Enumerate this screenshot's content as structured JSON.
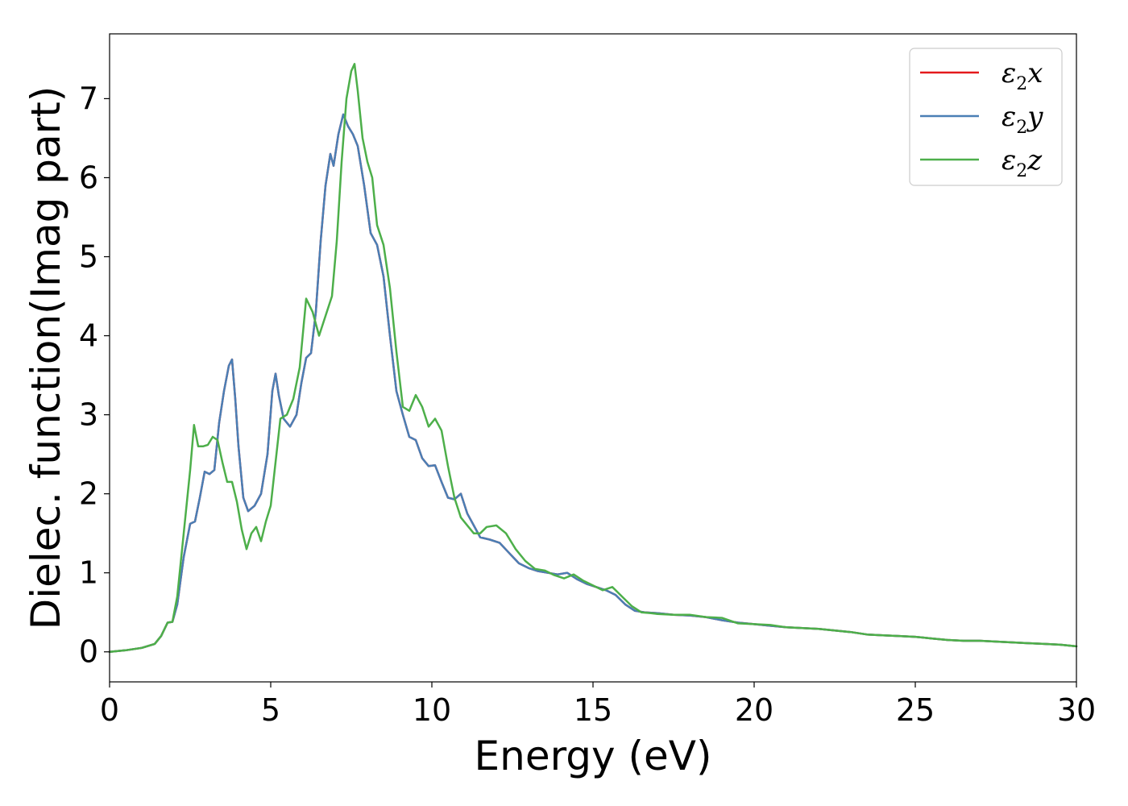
{
  "chart_data": {
    "type": "line",
    "title": "",
    "xlabel": "Energy (eV)",
    "ylabel": "Dielec. function(Imag part)",
    "xlim": [
      0,
      30
    ],
    "ylim": [
      -0.38,
      7.82
    ],
    "xticks": [
      0,
      5,
      10,
      15,
      20,
      25,
      30
    ],
    "yticks": [
      0,
      1,
      2,
      3,
      4,
      5,
      6,
      7
    ],
    "grid": false,
    "legend_position": "top-right",
    "series": [
      {
        "name": "ε₂x",
        "legend_main": "ε",
        "legend_sub": "2",
        "legend_suffix": "x",
        "color": "#e41a1c",
        "x": [
          0,
          0.5,
          1.0,
          1.4,
          1.6,
          1.8,
          1.95,
          2.1,
          2.3,
          2.5,
          2.65,
          2.8,
          2.95,
          3.1,
          3.25,
          3.4,
          3.55,
          3.7,
          3.8,
          3.9,
          4.0,
          4.15,
          4.3,
          4.5,
          4.7,
          4.9,
          5.05,
          5.15,
          5.25,
          5.4,
          5.6,
          5.8,
          5.95,
          6.1,
          6.25,
          6.4,
          6.55,
          6.7,
          6.85,
          6.95,
          7.1,
          7.25,
          7.4,
          7.55,
          7.7,
          7.9,
          8.1,
          8.3,
          8.5,
          8.7,
          8.9,
          9.1,
          9.3,
          9.5,
          9.7,
          9.9,
          10.1,
          10.3,
          10.5,
          10.7,
          10.9,
          11.1,
          11.3,
          11.5,
          11.8,
          12.1,
          12.4,
          12.7,
          13.0,
          13.3,
          13.6,
          13.9,
          14.2,
          14.5,
          14.8,
          15.1,
          15.4,
          15.7,
          16.0,
          16.3,
          16.6,
          17.0,
          17.5,
          18.0,
          18.5,
          19.0,
          19.5,
          20.0,
          20.5,
          21.0,
          21.5,
          22.0,
          22.5,
          23.0,
          23.5,
          24.0,
          24.5,
          25.0,
          25.5,
          26.0,
          26.5,
          27.0,
          27.5,
          28.0,
          28.5,
          29.0,
          29.5,
          30.0
        ],
        "y": [
          0.0,
          0.02,
          0.05,
          0.1,
          0.2,
          0.37,
          0.38,
          0.6,
          1.2,
          1.62,
          1.65,
          1.95,
          2.28,
          2.25,
          2.3,
          2.9,
          3.3,
          3.62,
          3.7,
          3.2,
          2.6,
          1.95,
          1.78,
          1.85,
          2.0,
          2.5,
          3.3,
          3.52,
          3.25,
          2.95,
          2.85,
          3.0,
          3.4,
          3.72,
          3.78,
          4.3,
          5.2,
          5.9,
          6.3,
          6.15,
          6.55,
          6.8,
          6.65,
          6.55,
          6.4,
          5.9,
          5.3,
          5.15,
          4.75,
          4.0,
          3.3,
          3.0,
          2.72,
          2.68,
          2.45,
          2.35,
          2.36,
          2.15,
          1.95,
          1.93,
          2.0,
          1.75,
          1.6,
          1.45,
          1.42,
          1.38,
          1.25,
          1.12,
          1.06,
          1.02,
          1.0,
          0.98,
          1.0,
          0.92,
          0.86,
          0.82,
          0.78,
          0.72,
          0.6,
          0.52,
          0.5,
          0.49,
          0.47,
          0.46,
          0.44,
          0.4,
          0.37,
          0.35,
          0.33,
          0.31,
          0.3,
          0.29,
          0.27,
          0.25,
          0.22,
          0.21,
          0.2,
          0.19,
          0.17,
          0.15,
          0.14,
          0.14,
          0.13,
          0.12,
          0.11,
          0.1,
          0.09,
          0.07
        ]
      },
      {
        "name": "ε₂y",
        "legend_main": "ε",
        "legend_sub": "2",
        "legend_suffix": "y",
        "color": "#4a7fb5",
        "x": [
          0,
          0.5,
          1.0,
          1.4,
          1.6,
          1.8,
          1.95,
          2.1,
          2.3,
          2.5,
          2.65,
          2.8,
          2.95,
          3.1,
          3.25,
          3.4,
          3.55,
          3.7,
          3.8,
          3.9,
          4.0,
          4.15,
          4.3,
          4.5,
          4.7,
          4.9,
          5.05,
          5.15,
          5.25,
          5.4,
          5.6,
          5.8,
          5.95,
          6.1,
          6.25,
          6.4,
          6.55,
          6.7,
          6.85,
          6.95,
          7.1,
          7.25,
          7.4,
          7.55,
          7.7,
          7.9,
          8.1,
          8.3,
          8.5,
          8.7,
          8.9,
          9.1,
          9.3,
          9.5,
          9.7,
          9.9,
          10.1,
          10.3,
          10.5,
          10.7,
          10.9,
          11.1,
          11.3,
          11.5,
          11.8,
          12.1,
          12.4,
          12.7,
          13.0,
          13.3,
          13.6,
          13.9,
          14.2,
          14.5,
          14.8,
          15.1,
          15.4,
          15.7,
          16.0,
          16.3,
          16.6,
          17.0,
          17.5,
          18.0,
          18.5,
          19.0,
          19.5,
          20.0,
          20.5,
          21.0,
          21.5,
          22.0,
          22.5,
          23.0,
          23.5,
          24.0,
          24.5,
          25.0,
          25.5,
          26.0,
          26.5,
          27.0,
          27.5,
          28.0,
          28.5,
          29.0,
          29.5,
          30.0
        ],
        "y": [
          0.0,
          0.02,
          0.05,
          0.1,
          0.2,
          0.37,
          0.38,
          0.6,
          1.2,
          1.62,
          1.65,
          1.95,
          2.28,
          2.25,
          2.3,
          2.9,
          3.3,
          3.62,
          3.7,
          3.2,
          2.6,
          1.95,
          1.78,
          1.85,
          2.0,
          2.5,
          3.3,
          3.52,
          3.25,
          2.95,
          2.85,
          3.0,
          3.4,
          3.72,
          3.78,
          4.3,
          5.2,
          5.9,
          6.3,
          6.15,
          6.55,
          6.8,
          6.65,
          6.55,
          6.4,
          5.9,
          5.3,
          5.15,
          4.75,
          4.0,
          3.3,
          3.0,
          2.72,
          2.68,
          2.45,
          2.35,
          2.36,
          2.15,
          1.95,
          1.93,
          2.0,
          1.75,
          1.6,
          1.45,
          1.42,
          1.38,
          1.25,
          1.12,
          1.06,
          1.02,
          1.0,
          0.98,
          1.0,
          0.92,
          0.86,
          0.82,
          0.78,
          0.72,
          0.6,
          0.52,
          0.5,
          0.49,
          0.47,
          0.46,
          0.44,
          0.4,
          0.37,
          0.35,
          0.33,
          0.31,
          0.3,
          0.29,
          0.27,
          0.25,
          0.22,
          0.21,
          0.2,
          0.19,
          0.17,
          0.15,
          0.14,
          0.14,
          0.13,
          0.12,
          0.11,
          0.1,
          0.09,
          0.07
        ]
      },
      {
        "name": "ε₂z",
        "legend_main": "ε",
        "legend_sub": "2",
        "legend_suffix": "z",
        "color": "#4daf4a",
        "x": [
          0,
          0.5,
          1.0,
          1.4,
          1.6,
          1.8,
          1.95,
          2.1,
          2.3,
          2.5,
          2.62,
          2.75,
          2.9,
          3.05,
          3.2,
          3.35,
          3.5,
          3.65,
          3.8,
          3.95,
          4.1,
          4.25,
          4.4,
          4.55,
          4.7,
          4.85,
          5.0,
          5.15,
          5.3,
          5.5,
          5.7,
          5.9,
          6.1,
          6.3,
          6.5,
          6.7,
          6.9,
          7.05,
          7.2,
          7.35,
          7.5,
          7.6,
          7.7,
          7.85,
          8.0,
          8.15,
          8.3,
          8.5,
          8.7,
          8.9,
          9.1,
          9.3,
          9.5,
          9.7,
          9.9,
          10.1,
          10.3,
          10.5,
          10.7,
          10.9,
          11.1,
          11.3,
          11.5,
          11.7,
          12.0,
          12.3,
          12.6,
          12.9,
          13.2,
          13.5,
          13.8,
          14.1,
          14.4,
          14.7,
          15.0,
          15.3,
          15.6,
          15.9,
          16.2,
          16.5,
          16.8,
          17.0,
          17.5,
          18.0,
          18.5,
          19.0,
          19.5,
          20.0,
          20.5,
          21.0,
          21.5,
          22.0,
          22.5,
          23.0,
          23.5,
          24.0,
          24.5,
          25.0,
          25.5,
          26.0,
          26.5,
          27.0,
          27.5,
          28.0,
          28.5,
          29.0,
          29.5,
          30.0
        ],
        "y": [
          0.0,
          0.02,
          0.05,
          0.1,
          0.2,
          0.37,
          0.38,
          0.7,
          1.5,
          2.3,
          2.87,
          2.6,
          2.6,
          2.62,
          2.72,
          2.68,
          2.4,
          2.15,
          2.15,
          1.9,
          1.55,
          1.3,
          1.5,
          1.58,
          1.4,
          1.65,
          1.85,
          2.4,
          2.95,
          3.0,
          3.2,
          3.6,
          4.47,
          4.3,
          4.0,
          4.25,
          4.5,
          5.2,
          6.2,
          7.0,
          7.35,
          7.44,
          7.1,
          6.5,
          6.2,
          6.0,
          5.4,
          5.15,
          4.6,
          3.8,
          3.1,
          3.05,
          3.25,
          3.1,
          2.85,
          2.95,
          2.8,
          2.35,
          1.95,
          1.7,
          1.6,
          1.5,
          1.5,
          1.58,
          1.6,
          1.5,
          1.3,
          1.15,
          1.05,
          1.03,
          0.97,
          0.93,
          0.98,
          0.9,
          0.84,
          0.78,
          0.82,
          0.7,
          0.58,
          0.5,
          0.49,
          0.48,
          0.47,
          0.47,
          0.44,
          0.43,
          0.36,
          0.35,
          0.34,
          0.31,
          0.3,
          0.29,
          0.27,
          0.25,
          0.22,
          0.21,
          0.2,
          0.19,
          0.17,
          0.15,
          0.14,
          0.14,
          0.13,
          0.12,
          0.11,
          0.1,
          0.09,
          0.07
        ]
      }
    ]
  }
}
